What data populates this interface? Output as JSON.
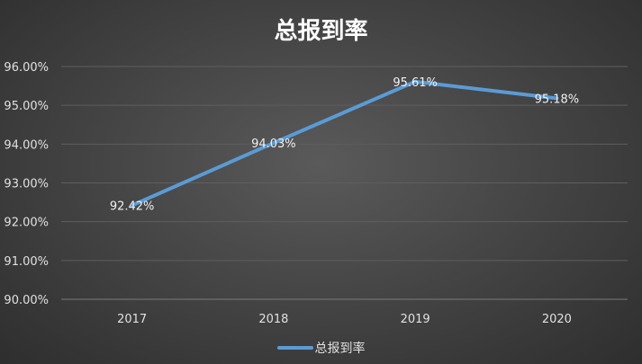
{
  "chart_data": {
    "type": "line",
    "title": "总报到率",
    "categories": [
      "2017",
      "2018",
      "2019",
      "2020"
    ],
    "series": [
      {
        "name": "总报到率",
        "values": [
          92.42,
          94.03,
          95.61,
          95.18
        ],
        "labels": [
          "92.42%",
          "94.03%",
          "95.61%",
          "95.18%"
        ]
      }
    ],
    "ylim": [
      90,
      96
    ],
    "yticks": [
      "90.00%",
      "91.00%",
      "92.00%",
      "93.00%",
      "94.00%",
      "95.00%",
      "96.00%"
    ],
    "grid": true,
    "legend": "bottom",
    "line_color": "#5b9bd5"
  }
}
